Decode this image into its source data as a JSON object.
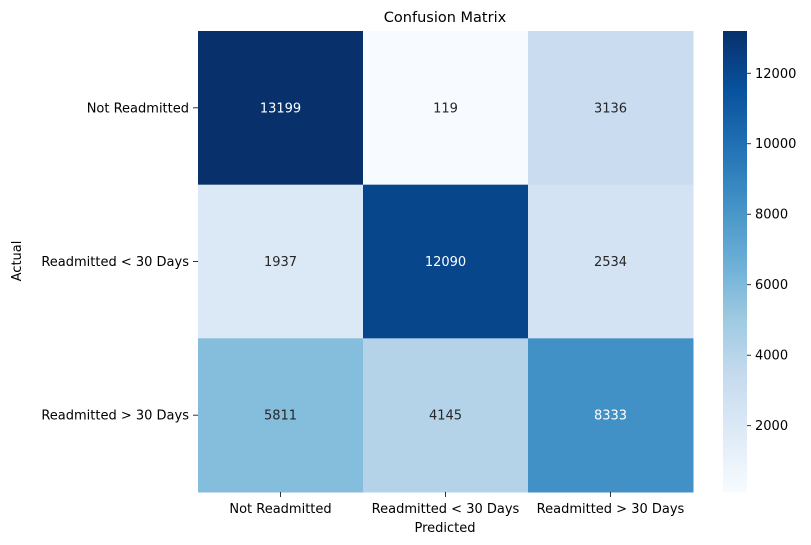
{
  "chart_data": {
    "type": "heatmap",
    "title": "Confusion Matrix",
    "xlabel": "Predicted",
    "ylabel": "Actual",
    "x_categories": [
      "Not Readmitted",
      "Readmitted < 30 Days",
      "Readmitted > 30 Days"
    ],
    "y_categories": [
      "Not Readmitted",
      "Readmitted < 30 Days",
      "Readmitted > 30 Days"
    ],
    "values": [
      [
        13199,
        119,
        3136
      ],
      [
        1937,
        12090,
        2534
      ],
      [
        5811,
        4145,
        8333
      ]
    ],
    "colormap": "Blues",
    "colorbar": {
      "min": 119,
      "max": 13199,
      "ticks": [
        2000,
        4000,
        6000,
        8000,
        10000,
        12000
      ]
    },
    "colors": {
      "low": "#f7fbff",
      "high": "#08306b"
    }
  }
}
